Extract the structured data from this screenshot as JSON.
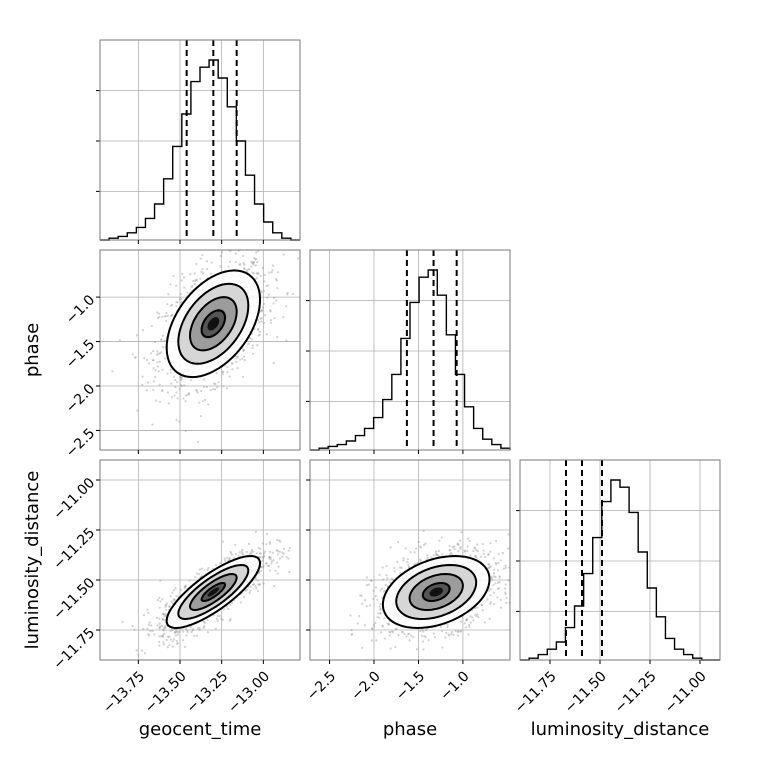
{
  "chart_data": {
    "type": "corner",
    "parameters": [
      {
        "name": "geocent_time",
        "label": "geocent_time",
        "range": [
          -13.98,
          -12.78
        ],
        "ticks": [
          -13.75,
          -13.5,
          -13.25,
          -13.0
        ],
        "tick_labels": [
          "−13.75",
          "−13.50",
          "−13.25",
          "−13.00"
        ],
        "quantiles": [
          -13.46,
          -13.3,
          -13.16
        ]
      },
      {
        "name": "phase",
        "label": "phase",
        "range": [
          -2.72,
          -0.47
        ],
        "ticks": [
          -2.5,
          -2.0,
          -1.5,
          -1.0
        ],
        "tick_labels": [
          "−2.5",
          "−2.0",
          "−1.5",
          "−1.0"
        ],
        "quantiles": [
          -1.63,
          -1.33,
          -1.07
        ]
      },
      {
        "name": "luminosity_distance",
        "label": "luminosity_distance",
        "range": [
          -11.9,
          -10.9
        ],
        "ticks": [
          -11.75,
          -11.5,
          -11.25,
          -11.0
        ],
        "tick_labels": [
          "−11.75",
          "−11.50",
          "−11.25",
          "−11.00"
        ],
        "quantiles": [
          -11.67,
          -11.59,
          -11.49
        ]
      }
    ],
    "histograms": [
      {
        "param": "geocent_time",
        "counts": [
          0,
          1,
          2,
          4,
          7,
          12,
          20,
          34,
          52,
          70,
          88,
          96,
          100,
          90,
          74,
          55,
          36,
          20,
          10,
          4,
          1,
          0
        ]
      },
      {
        "param": "phase",
        "counts": [
          0,
          1,
          2,
          3,
          5,
          8,
          12,
          18,
          28,
          42,
          62,
          82,
          96,
          100,
          86,
          64,
          42,
          24,
          12,
          6,
          3,
          1
        ]
      },
      {
        "param": "luminosity_distance",
        "counts": [
          0,
          1,
          3,
          6,
          10,
          18,
          30,
          48,
          68,
          88,
          100,
          96,
          82,
          60,
          40,
          24,
          12,
          6,
          3,
          1,
          0,
          0
        ]
      }
    ],
    "pairs": [
      {
        "x": "geocent_time",
        "y": "phase",
        "mean": [
          -13.3,
          -1.3
        ],
        "sd": [
          0.14,
          0.3
        ],
        "rho": 0.45
      },
      {
        "x": "geocent_time",
        "y": "luminosity_distance",
        "mean": [
          -13.3,
          -11.56
        ],
        "sd": [
          0.14,
          0.09
        ],
        "rho": 0.8
      },
      {
        "x": "phase",
        "y": "luminosity_distance",
        "mean": [
          -1.3,
          -11.56
        ],
        "sd": [
          0.3,
          0.09
        ],
        "rho": 0.35
      }
    ],
    "grid": true
  }
}
